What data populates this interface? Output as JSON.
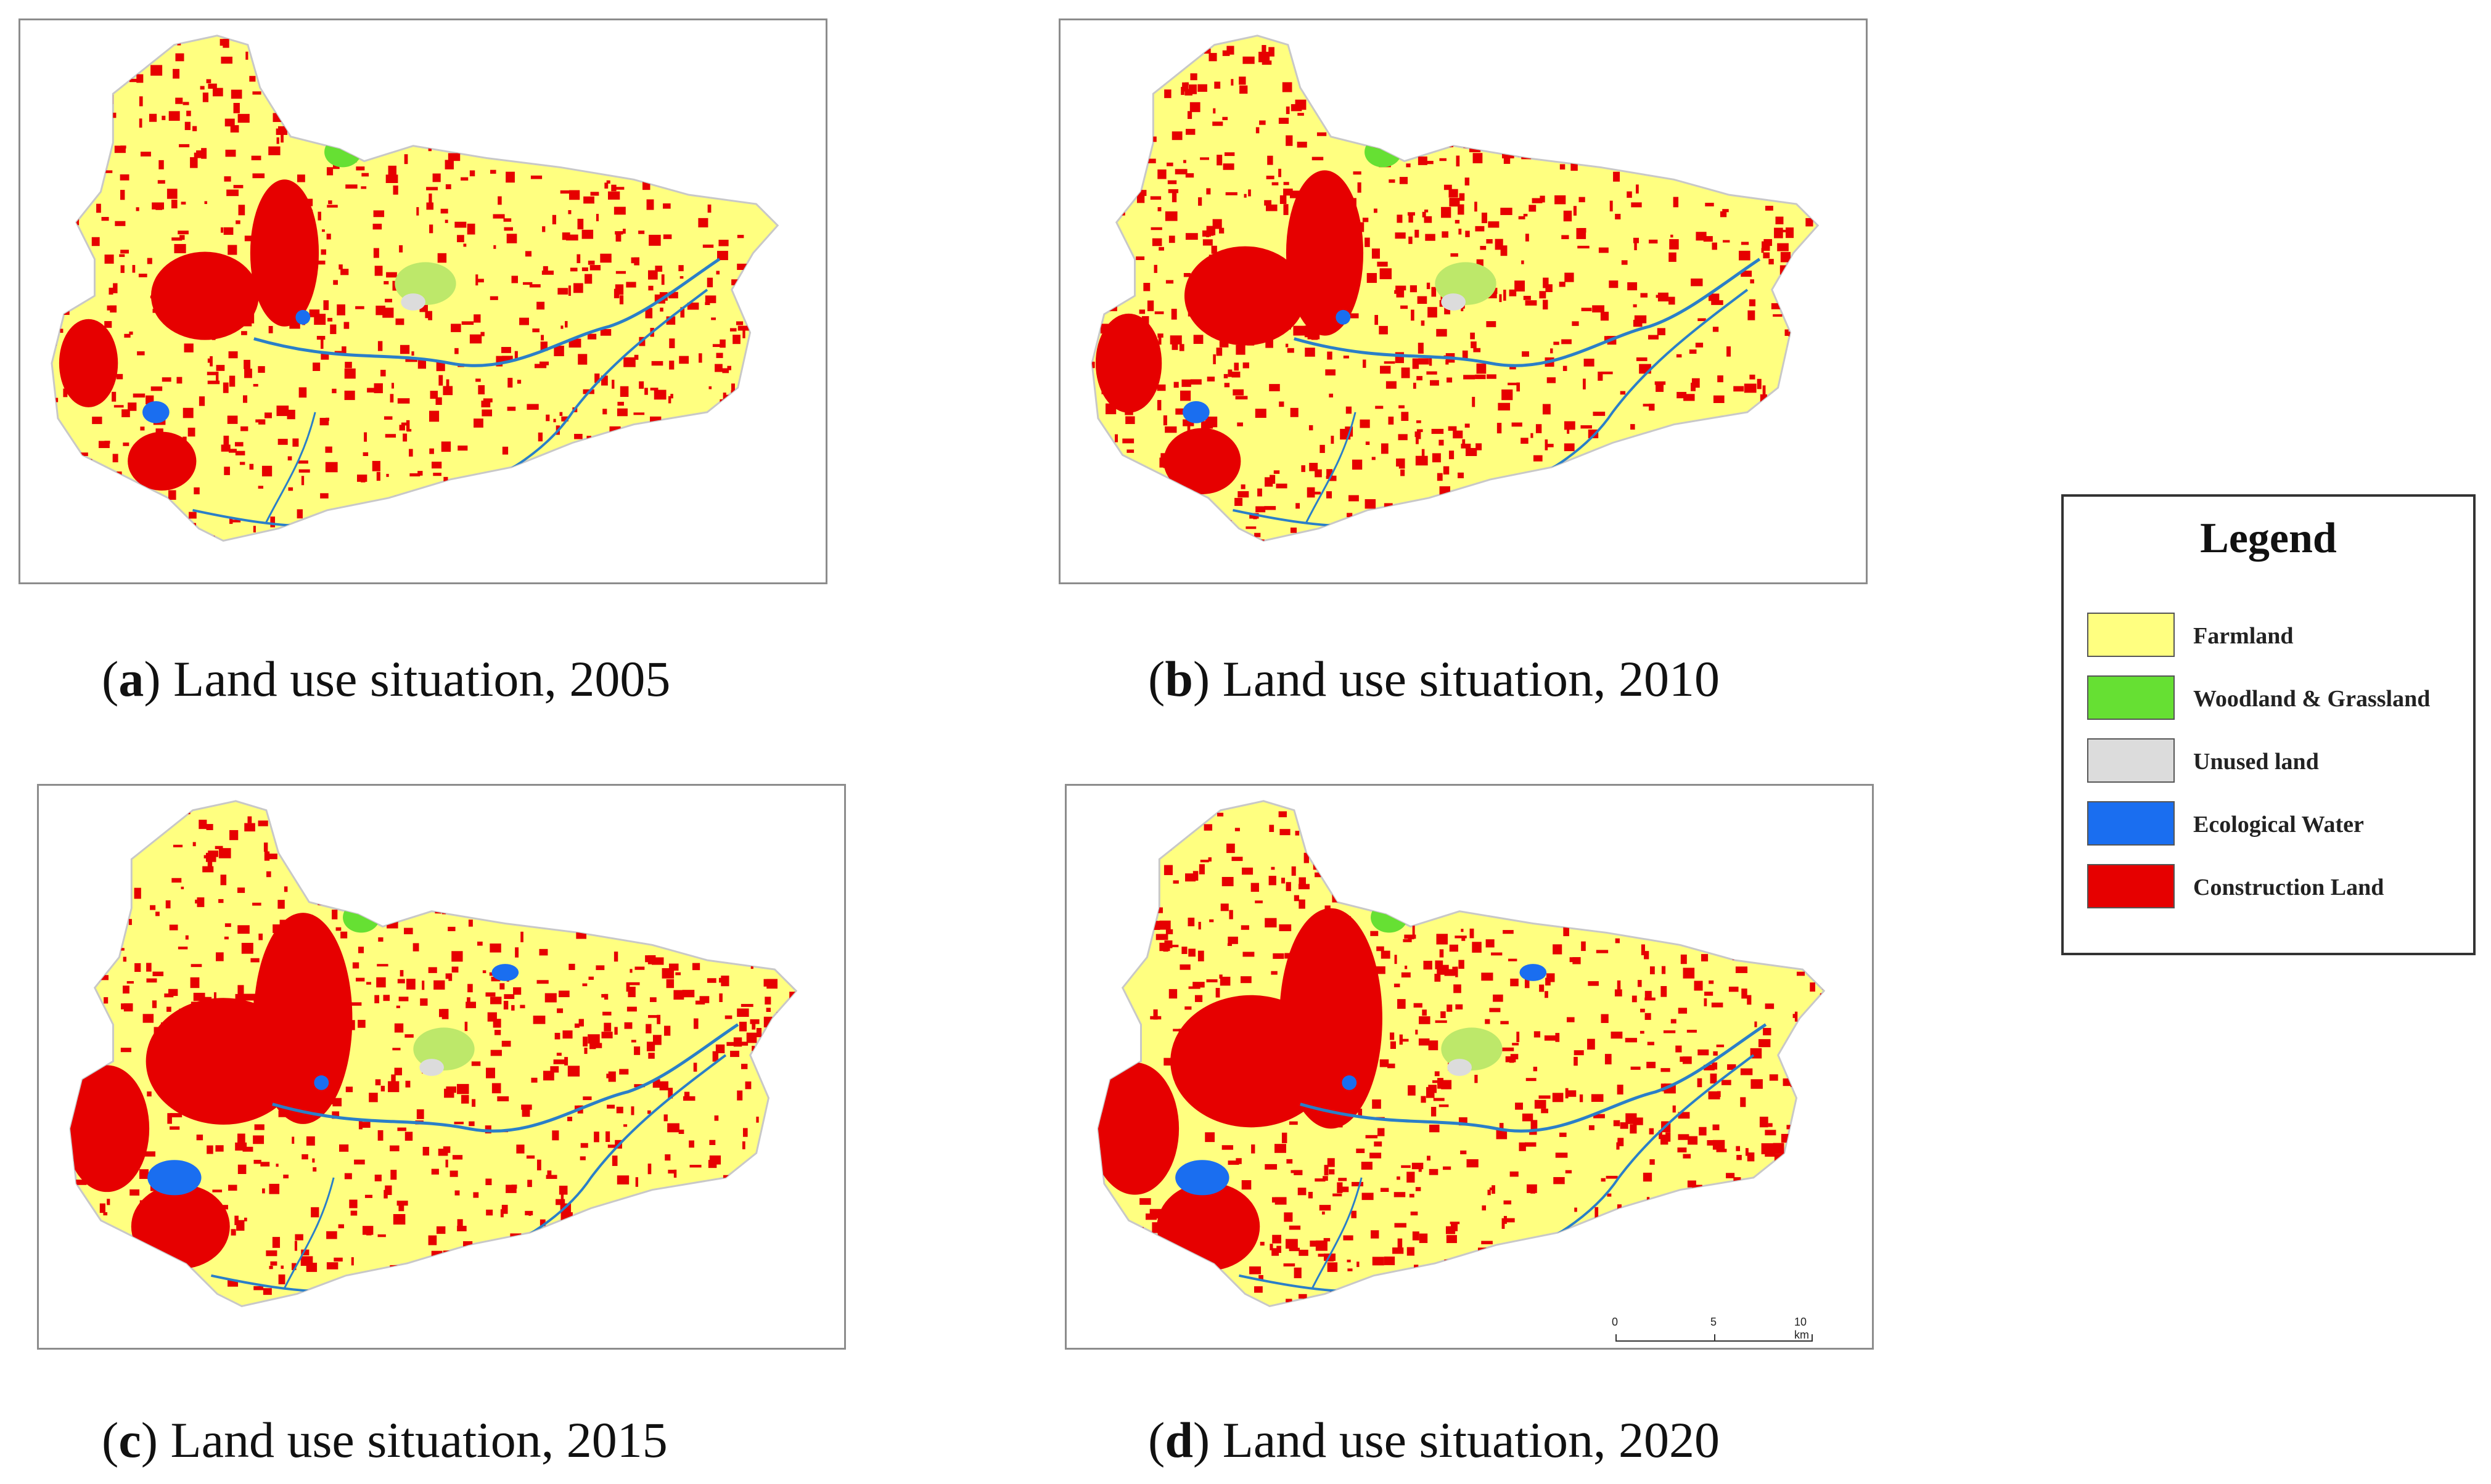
{
  "panels": [
    {
      "id": "a",
      "letter": "a",
      "caption": " Land use situation, 2005",
      "urban_scale": 0.8,
      "extra_water": false
    },
    {
      "id": "b",
      "letter": "b",
      "caption": " Land use situation, 2010",
      "urban_scale": 0.9,
      "extra_water": false
    },
    {
      "id": "c",
      "letter": "c",
      "caption": " Land use situation, 2015",
      "urban_scale": 1.15,
      "extra_water": true
    },
    {
      "id": "d",
      "letter": "d",
      "caption": " Land use situation, 2020",
      "urban_scale": 1.2,
      "extra_water": true
    }
  ],
  "legend": {
    "title": "Legend",
    "items": [
      {
        "label": "Farmland",
        "color": "#ffff80"
      },
      {
        "label": "Woodland & Grassland",
        "color": "#66e033"
      },
      {
        "label": "Unused land",
        "color": "#dcdcdc"
      },
      {
        "label": "Ecological Water",
        "color": "#1a6ef0"
      },
      {
        "label": "Construction Land",
        "color": "#e60000"
      }
    ]
  },
  "scale_bar": {
    "labels": [
      "0",
      "5",
      "10 km"
    ]
  },
  "colors": {
    "farmland": "#ffff80",
    "farmland_outline": "#c8c8c8",
    "woodland": "#66e033",
    "unused": "#dcdcdc",
    "water": "#1a6ef0",
    "construction": "#e60000",
    "river": "#2a7fc8"
  }
}
